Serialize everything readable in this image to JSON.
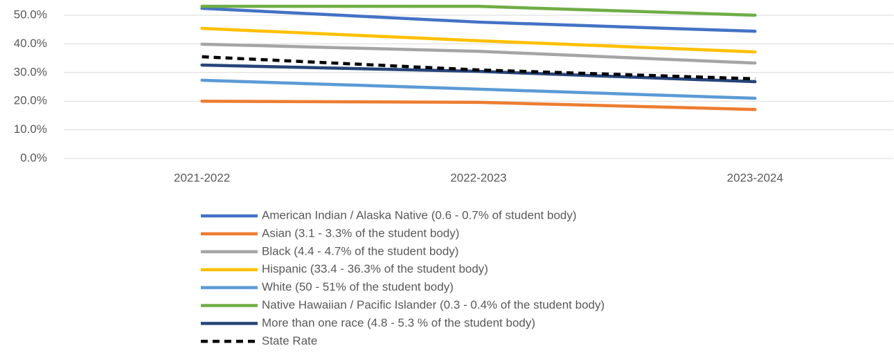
{
  "chart_data": {
    "type": "line",
    "categories": [
      "2021-2022",
      "2022-2023",
      "2023-2024"
    ],
    "series": [
      {
        "name": "American Indian / Alaska Native (0.6 - 0.7% of student body)",
        "color": "#4472c4",
        "values": [
          52.4,
          47.6,
          44.4
        ]
      },
      {
        "name": "Asian (3.1 - 3.3% of the student body)",
        "color": "#ed7d31",
        "values": [
          20.0,
          19.6,
          17.1
        ]
      },
      {
        "name": "Black (4.4 - 4.7% of the student body)",
        "color": "#a5a5a5",
        "values": [
          39.9,
          37.4,
          33.3
        ]
      },
      {
        "name": "Hispanic (33.4 - 36.3% of the student body)",
        "color": "#ffc000",
        "values": [
          45.4,
          41.1,
          37.2
        ]
      },
      {
        "name": "White (50 - 51% of the student body)",
        "color": "#5b9bd5",
        "values": [
          27.3,
          24.2,
          21.0
        ]
      },
      {
        "name": "Native Hawaiian / Pacific Islander (0.3 - 0.4% of the student body)",
        "color": "#70ad47",
        "values": [
          53.1,
          53.1,
          50.0
        ]
      },
      {
        "name": "More than one race (4.8 - 5.3 % of the student body)",
        "color": "#264478",
        "values": [
          32.6,
          30.4,
          26.8
        ]
      },
      {
        "name": "State Rate",
        "color": "#000000",
        "dashed": true,
        "values": [
          35.5,
          30.9,
          27.8
        ]
      }
    ],
    "ylim": [
      0,
      55
    ],
    "yticks": [
      {
        "value": 0,
        "label": "0.0%"
      },
      {
        "value": 10,
        "label": "10.0%"
      },
      {
        "value": 20,
        "label": "20.0%"
      },
      {
        "value": 30,
        "label": "30.0%"
      },
      {
        "value": 40,
        "label": "40.0%"
      },
      {
        "value": 50,
        "label": "50.0%"
      }
    ],
    "grid": true,
    "legend": "bottom"
  }
}
